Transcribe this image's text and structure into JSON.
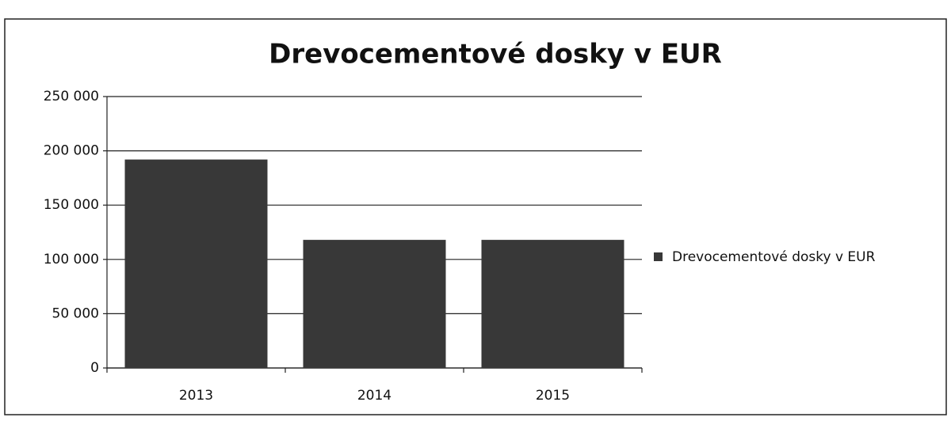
{
  "chart_data": {
    "type": "bar",
    "title": "Drevocementové dosky v EUR",
    "categories": [
      "2013",
      "2014",
      "2015"
    ],
    "series": [
      {
        "name": "Drevocementové dosky v EUR",
        "color": "#383838",
        "values": [
          192000,
          118000,
          118000
        ]
      }
    ],
    "ylim": [
      0,
      250000
    ],
    "yticks": [
      0,
      {
        "value": 50000,
        "label": "50 000"
      },
      {
        "value": 100000,
        "label": "100 000"
      },
      {
        "value": 150000,
        "label": "150 000"
      },
      {
        "value": 200000,
        "label": "200 000"
      },
      {
        "value": 250000,
        "label": "250 000"
      }
    ],
    "grid": true,
    "legend": "right"
  }
}
